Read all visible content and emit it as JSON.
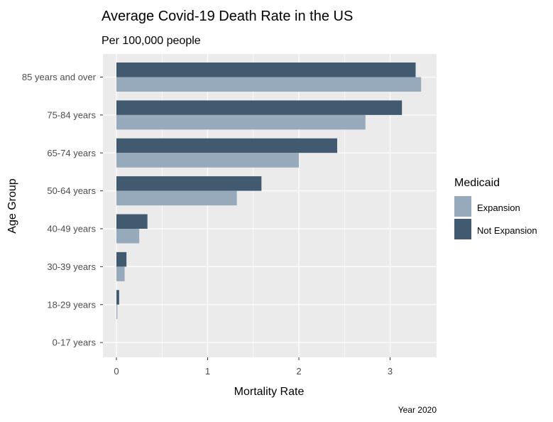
{
  "chart_data": {
    "type": "bar",
    "orientation": "horizontal",
    "title": "Average Covid-19 Death Rate in the US",
    "subtitle": "Per 100,000 people",
    "xlabel": "Mortality Rate",
    "ylabel": "Age Group",
    "caption": "Year 2020",
    "xlim": [
      0,
      3.5
    ],
    "xticks": [
      "0",
      "1",
      "2",
      "3"
    ],
    "grid": true,
    "legend": {
      "title": "Medicaid",
      "placement": "right"
    },
    "categories": [
      "85 years and over",
      "75-84 years",
      "65-74 years",
      "50-64 years",
      "40-49 years",
      "30-39 years",
      "18-29 years",
      "0-17 years"
    ],
    "series": [
      {
        "name": "Expansion",
        "color": "#96aabb",
        "values": [
          3.34,
          2.73,
          2.0,
          1.32,
          0.25,
          0.09,
          0.01,
          0.0
        ]
      },
      {
        "name": "Not Expansion",
        "color": "#415a70",
        "values": [
          3.28,
          3.13,
          2.42,
          1.59,
          0.34,
          0.11,
          0.03,
          0.0
        ]
      }
    ],
    "panel_color": "#ebebeb",
    "grid_color": "#ffffff"
  }
}
